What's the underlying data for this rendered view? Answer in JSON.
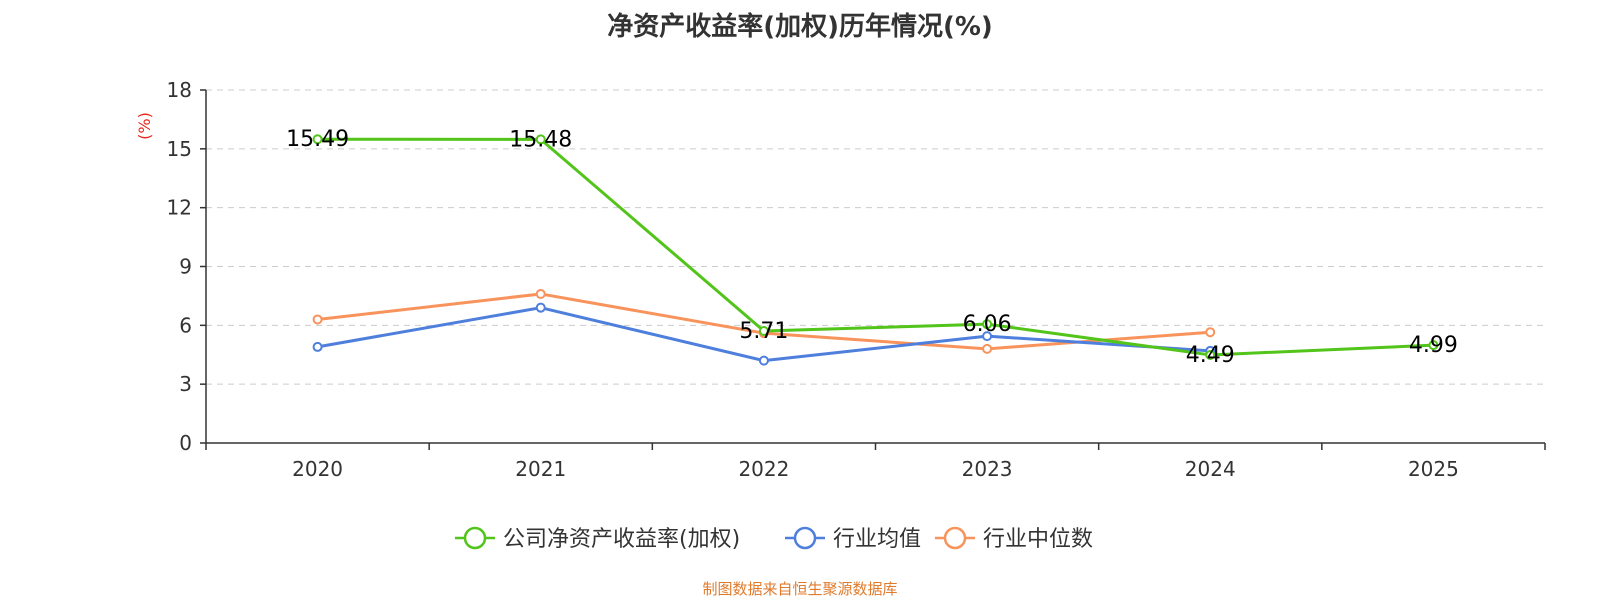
{
  "chart_data": {
    "type": "line",
    "title": "净资产收益率(加权)历年情况(%)",
    "ylabel": "(%)",
    "xlabel": "",
    "categories": [
      "2020",
      "2021",
      "2022",
      "2023",
      "2024",
      "2025"
    ],
    "ylim": [
      0,
      18
    ],
    "yticks": [
      0,
      3,
      6,
      9,
      12,
      15,
      18
    ],
    "grid": true,
    "legend_position": "bottom",
    "series": [
      {
        "name": "公司净资产收益率(加权)",
        "color": "#52c41a",
        "values": [
          15.49,
          15.48,
          5.71,
          6.06,
          4.49,
          4.99
        ],
        "labels": [
          "15.49",
          "15.48",
          "5.71",
          "6.06",
          "4.49",
          "4.99"
        ]
      },
      {
        "name": "行业均值",
        "color": "#4e7fdc",
        "values": [
          4.9,
          6.9,
          4.2,
          5.45,
          4.7,
          null
        ]
      },
      {
        "name": "行业中位数",
        "color": "#f8935c",
        "values": [
          6.3,
          7.6,
          5.6,
          4.8,
          5.65,
          null
        ]
      }
    ]
  },
  "ylabel_color": "#e8281c",
  "footer": "制图数据来自恒生聚源数据库"
}
